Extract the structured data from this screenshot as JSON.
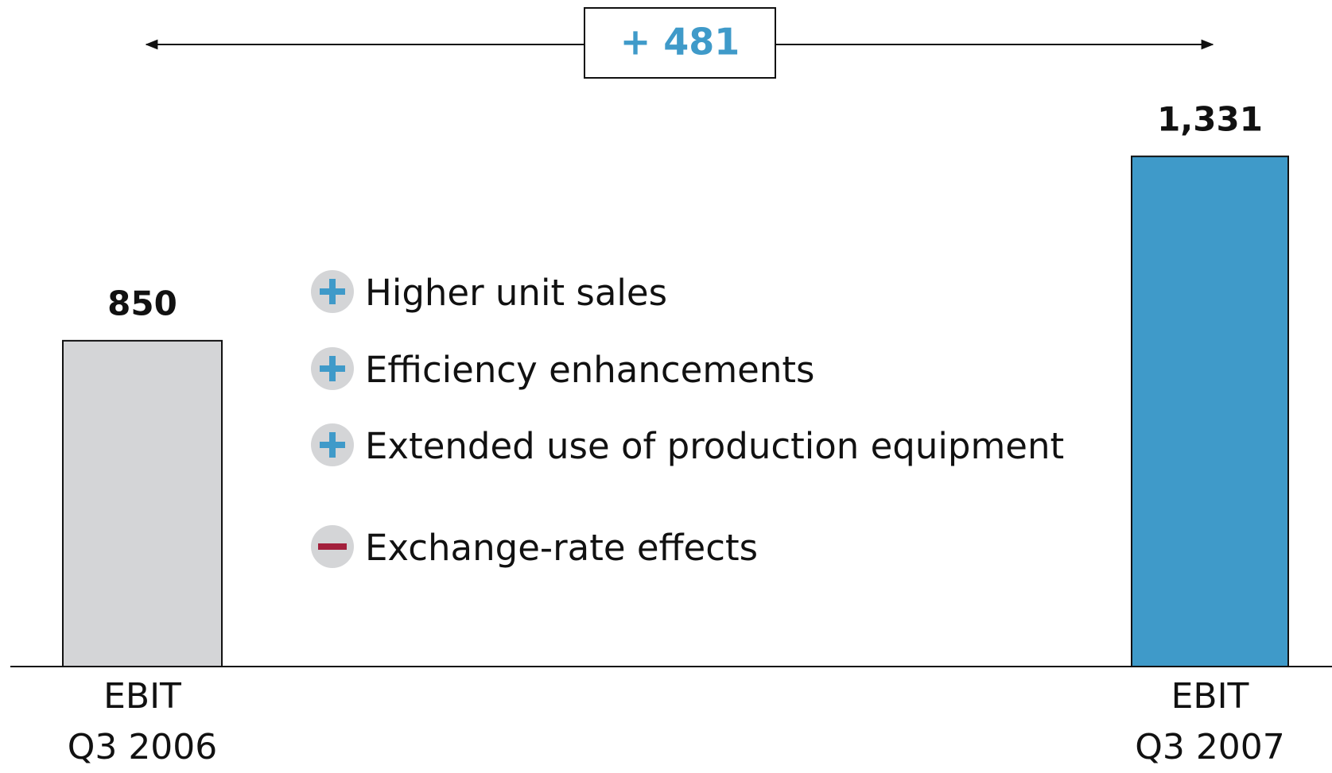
{
  "chart_data": {
    "type": "bar",
    "categories": [
      "EBIT\nQ3 2006",
      "EBIT\nQ3 2007"
    ],
    "values": [
      850,
      1331
    ],
    "value_labels": [
      "850",
      "1,331"
    ],
    "colors": [
      "#d4d5d7",
      "#3f9ac9"
    ],
    "annotation": "+ 481",
    "effects": [
      {
        "label": "Higher unit sales",
        "direction": "positive"
      },
      {
        "label": "Efficiency enhancements",
        "direction": "positive"
      },
      {
        "label": "Extended use of production equipment",
        "direction": "positive"
      },
      {
        "label": "Exchange-rate effects",
        "direction": "negative"
      }
    ]
  }
}
